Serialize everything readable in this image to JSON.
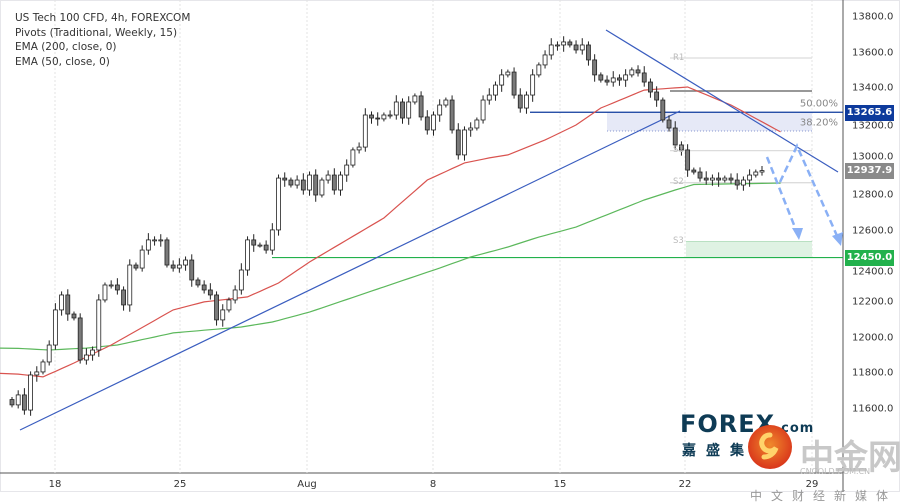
{
  "legend": [
    "US Tech 100 CFD, 4h, FOREXCOM",
    "Pivots (Traditional, Weekly, 15)",
    "EMA (200, close, 0)",
    "EMA (50, close, 0)"
  ],
  "chart_data": {
    "type": "candlestick",
    "symbol": "US Tech 100 CFD",
    "interval": "4h",
    "ylim": [
      11400,
      13850
    ],
    "y_ticks": [
      "13800.0",
      "13600.0",
      "13400.0",
      "13200.0",
      "13000.0",
      "12800.0",
      "12600.0",
      "12400.0",
      "12200.0",
      "12000.0",
      "11800.0",
      "11600.0"
    ],
    "x_ticks": [
      "18",
      "25",
      "Aug",
      "8",
      "15",
      "22",
      "29"
    ],
    "closes": [
      11623,
      11679,
      11594,
      11791,
      11808,
      11864,
      11959,
      12156,
      12240,
      12133,
      12111,
      11875,
      11903,
      11931,
      12212,
      12296,
      12296,
      12268,
      12184,
      12408,
      12391,
      12492,
      12549,
      12549,
      12549,
      12408,
      12391,
      12408,
      12436,
      12324,
      12296,
      12268,
      12240,
      12100,
      12156,
      12212,
      12268,
      12380,
      12549,
      12520,
      12520,
      12492,
      12605,
      12896,
      12885,
      12857,
      12885,
      12829,
      12913,
      12801,
      12885,
      12913,
      12829,
      12913,
      12969,
      13054,
      13070,
      13250,
      13233,
      13228,
      13250,
      13250,
      13323,
      13233,
      13323,
      13357,
      13239,
      13166,
      13250,
      13306,
      13334,
      13166,
      13026,
      13166,
      13177,
      13222,
      13334,
      13362,
      13418,
      13475,
      13491,
      13362,
      13289,
      13362,
      13475,
      13531,
      13587,
      13643,
      13643,
      13660,
      13643,
      13615,
      13643,
      13559,
      13475,
      13446,
      13435,
      13458,
      13446,
      13475,
      13503,
      13486,
      13435,
      13379,
      13334,
      13222,
      13177,
      13082,
      13054,
      12941,
      12930,
      12896,
      12885,
      12896,
      12885,
      12896,
      12885,
      12857,
      12885,
      12913,
      12930,
      12937.9
    ],
    "ema50": [
      [
        0,
        11800
      ],
      [
        5,
        11780
      ],
      [
        10,
        11858
      ],
      [
        16,
        11959
      ],
      [
        26,
        12156
      ],
      [
        31,
        12201
      ],
      [
        38,
        12229
      ],
      [
        43,
        12307
      ],
      [
        48,
        12425
      ],
      [
        60,
        12672
      ],
      [
        67,
        12885
      ],
      [
        73,
        12981
      ],
      [
        77,
        13009
      ],
      [
        80,
        13026
      ],
      [
        86,
        13110
      ],
      [
        91,
        13194
      ],
      [
        95,
        13289
      ],
      [
        102,
        13390
      ],
      [
        109,
        13407
      ],
      [
        116,
        13306
      ],
      [
        124,
        13155
      ]
    ],
    "ema200": [
      [
        0,
        11942
      ],
      [
        6,
        11931
      ],
      [
        12,
        11942
      ],
      [
        17,
        11959
      ],
      [
        26,
        12027
      ],
      [
        37,
        12060
      ],
      [
        42,
        12088
      ],
      [
        48,
        12144
      ],
      [
        69,
        12391
      ],
      [
        74,
        12453
      ],
      [
        80,
        12509
      ],
      [
        85,
        12565
      ],
      [
        91,
        12621
      ],
      [
        102,
        12773
      ],
      [
        107,
        12829
      ],
      [
        110,
        12860
      ],
      [
        124,
        12868
      ]
    ],
    "pivots": {
      "R1": 13570,
      "S1": 13050,
      "S2": 12870,
      "S3": 12540
    },
    "fib_levels": [
      {
        "label": "50.00%",
        "value": 13385
      },
      {
        "label": "38.20%",
        "value": 13160
      }
    ],
    "current_price": {
      "label": "13265.6",
      "value": 13265.6,
      "color": "#0d3a9c"
    },
    "last_price": {
      "label": "12937.9",
      "value": 12937.9,
      "color": "#8a8a8a"
    },
    "support": {
      "label": "12450.0",
      "value": 12450,
      "color": "#22b14c"
    },
    "colors": {
      "ema50": "#d9534f",
      "ema200": "#5cb85c",
      "trendline": "#3a5dbf",
      "arrows": "#8ab0f5"
    }
  },
  "watermark": {
    "forex": "FOREX",
    "forex_suffix": ".com",
    "forex_cn": "嘉盛集",
    "cngold": "中金网",
    "cngold_url": "CNGOLD.COM.CN",
    "cn_media": "中文财经新媒体"
  }
}
